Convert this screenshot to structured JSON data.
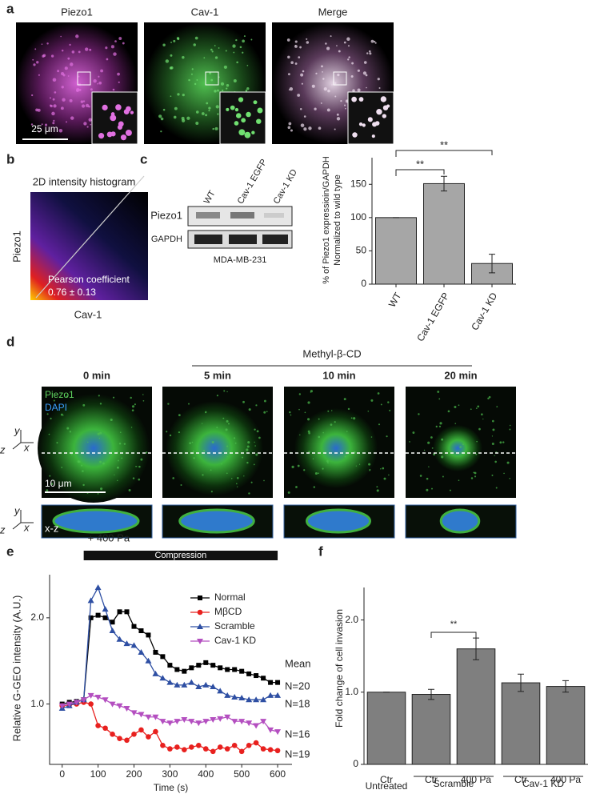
{
  "figure": {
    "letters": [
      "a",
      "b",
      "c",
      "d",
      "e",
      "f"
    ],
    "a": {
      "channels": [
        "Piezo1",
        "Cav-1",
        "Merge"
      ],
      "scale_bar": "25 μm"
    },
    "b": {
      "title": "2D intensity histogram",
      "y_label": "Piezo1",
      "x_label": "Cav-1",
      "stat_name": "Pearson coefficient",
      "stat_value": "0.76 ± 0.13"
    },
    "c_blot": {
      "lanes": [
        "WT",
        "Cav-1 EGFP",
        "Cav-1 KD"
      ],
      "rows": [
        "Piezo1",
        "GAPDH"
      ],
      "cell_line": "MDA-MB-231"
    },
    "d": {
      "treatment": "Methyl-β-CD",
      "times": [
        "0 min",
        "5 min",
        "10 min",
        "20 min"
      ],
      "stains": [
        "Piezo1",
        "DAPI"
      ],
      "scale_bar": "10 μm",
      "view": "x-z",
      "axes": [
        "y",
        "x",
        "z"
      ]
    }
  },
  "chart_data": [
    {
      "type": "bar",
      "y_label": [
        "% of Piezo1 expressioin/GAPDH",
        "Normalized to wild type"
      ],
      "categories": [
        "WT",
        "Cav-1 EGFP",
        "Cav-1 KD"
      ],
      "values": [
        100,
        151,
        31
      ],
      "errors": [
        0,
        11,
        14
      ],
      "color": "#a6a6a6",
      "ylim": [
        0,
        190
      ],
      "yticks": [
        0,
        50,
        100,
        150
      ],
      "annotations": [
        "**",
        "**"
      ]
    },
    {
      "type": "line",
      "x_label": "Time (s)",
      "y_label": "Relative  G-GEO intensity (A.U.)",
      "pressure": "+ 400 Pa",
      "bar_label": "Compression",
      "summary_label": "Mean",
      "x": [
        0,
        20,
        40,
        60,
        80,
        100,
        120,
        140,
        160,
        180,
        200,
        220,
        240,
        260,
        280,
        300,
        320,
        340,
        360,
        380,
        400,
        420,
        440,
        460,
        480,
        500,
        520,
        540,
        560,
        580,
        600
      ],
      "series": [
        {
          "name": "Normal",
          "color": "#000000",
          "marker": "square",
          "n_label": "N=20",
          "values": [
            1.0,
            1.02,
            1.03,
            1.05,
            2.0,
            2.03,
            2.0,
            1.95,
            2.07,
            2.07,
            1.9,
            1.85,
            1.8,
            1.6,
            1.55,
            1.45,
            1.4,
            1.38,
            1.42,
            1.45,
            1.48,
            1.45,
            1.42,
            1.4,
            1.4,
            1.38,
            1.35,
            1.33,
            1.3,
            1.25,
            1.25
          ]
        },
        {
          "name": "MβCD",
          "color": "#e8201e",
          "marker": "circle",
          "n_label": "N=19",
          "values": [
            0.98,
            0.99,
            1.0,
            1.02,
            1.0,
            0.75,
            0.72,
            0.65,
            0.6,
            0.58,
            0.65,
            0.7,
            0.62,
            0.68,
            0.52,
            0.48,
            0.5,
            0.47,
            0.5,
            0.52,
            0.48,
            0.45,
            0.5,
            0.48,
            0.52,
            0.45,
            0.52,
            0.55,
            0.48,
            0.47,
            0.46
          ]
        },
        {
          "name": "Scramble",
          "color": "#2e4fa3",
          "marker": "triangle-up",
          "n_label": "N=18",
          "values": [
            0.95,
            0.98,
            1.02,
            1.05,
            2.2,
            2.35,
            2.1,
            1.85,
            1.75,
            1.7,
            1.68,
            1.6,
            1.5,
            1.35,
            1.3,
            1.25,
            1.22,
            1.22,
            1.25,
            1.2,
            1.22,
            1.2,
            1.15,
            1.1,
            1.08,
            1.07,
            1.05,
            1.05,
            1.05,
            1.1,
            1.1
          ]
        },
        {
          "name": "Cav-1 KD",
          "color": "#b44fc0",
          "marker": "triangle-down",
          "n_label": "N=16",
          "values": [
            0.98,
            1.0,
            1.02,
            1.05,
            1.1,
            1.08,
            1.05,
            1.0,
            0.98,
            0.95,
            0.9,
            0.88,
            0.85,
            0.85,
            0.8,
            0.78,
            0.8,
            0.82,
            0.8,
            0.78,
            0.8,
            0.82,
            0.83,
            0.85,
            0.8,
            0.8,
            0.78,
            0.75,
            0.8,
            0.7,
            0.68
          ]
        }
      ],
      "xlim": [
        -35,
        640
      ],
      "xticks": [
        0,
        100,
        200,
        300,
        400,
        500,
        600
      ],
      "ylim": [
        0.3,
        2.5
      ],
      "yticks": [
        {
          "value": 1,
          "label": "1.0"
        },
        {
          "value": 2,
          "label": "2.0"
        }
      ]
    },
    {
      "type": "bar",
      "y_label": "Fold change  of cell invasion",
      "categories": [
        "Ctr",
        "Ctr",
        "400 Pa",
        "Ctr",
        "400 Pa"
      ],
      "groups": [
        "Untreated",
        "Scramble",
        "Cav-1 KD"
      ],
      "values": [
        1.0,
        0.97,
        1.6,
        1.13,
        1.08
      ],
      "errors": [
        0,
        0.07,
        0.15,
        0.12,
        0.08
      ],
      "color": "#7f7f7f",
      "ylim": [
        0,
        2.45
      ],
      "yticks": [
        0,
        {
          "value": 1,
          "label": "1.0"
        },
        {
          "value": 2,
          "label": "2.0"
        }
      ],
      "annotations": [
        "**"
      ]
    }
  ]
}
